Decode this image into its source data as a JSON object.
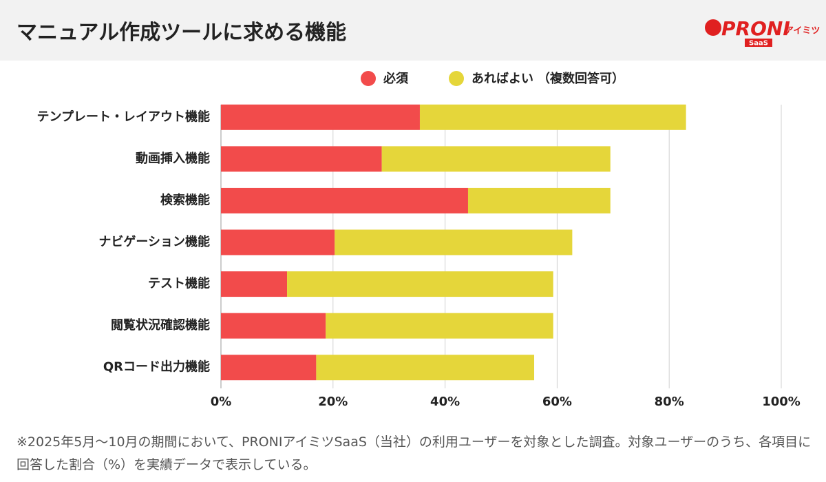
{
  "header": {
    "title": "マニュアル作成ツールに求める機能",
    "logo": {
      "brand": "PRONI",
      "sub": "アイミツ",
      "tag": "SaaS"
    }
  },
  "chart_data": {
    "type": "stacked-bar-horizontal",
    "categories": [
      "テンプレート・レイアウト機能",
      "動画挿入機能",
      "検索機能",
      "ナビゲーション機能",
      "テスト機能",
      "閲覧状況確認機能",
      "QRコード出力機能"
    ],
    "series": [
      {
        "name": "必須",
        "color": "#f24b4b",
        "values": [
          35.5,
          28.7,
          44.1,
          20.3,
          11.8,
          18.7,
          17.0
        ]
      },
      {
        "name": "あればよい",
        "color": "#e5d63a",
        "values": [
          47.5,
          40.8,
          25.4,
          42.4,
          47.5,
          40.6,
          38.9
        ]
      }
    ],
    "legend_note": "（複数回答可）",
    "legend": "top",
    "xlim": [
      0,
      100
    ],
    "xticks": [
      {
        "value": 0,
        "label": "0%"
      },
      {
        "value": 20,
        "label": "20%"
      },
      {
        "value": 40,
        "label": "40%"
      },
      {
        "value": 60,
        "label": "60%"
      },
      {
        "value": 80,
        "label": "80%"
      },
      {
        "value": 100,
        "label": "100%"
      }
    ],
    "grid": true
  },
  "footnote": "※2025年5月〜10月の期間において、PRONIアイミツSaaS（当社）の利用ユーザーを対象とした調査。対象ユーザーのうち、各項目に回答した割合（%）を実績データで表示している。"
}
